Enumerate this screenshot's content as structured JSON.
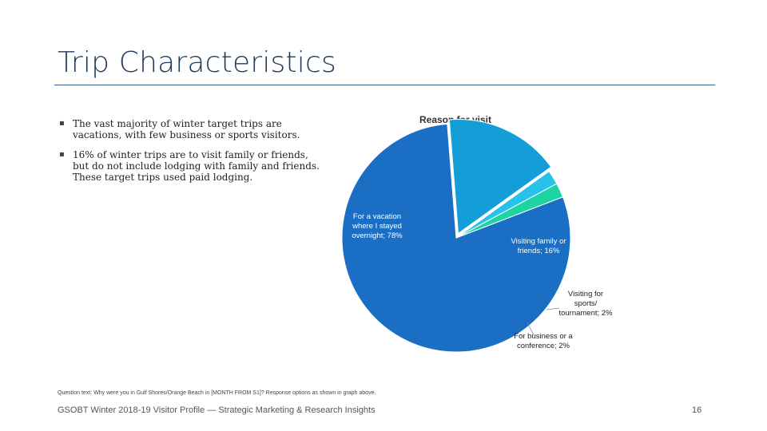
{
  "slide": {
    "title": "Trip Characteristics",
    "bullets": [
      "The vast majority of winter target trips are vacations, with few business or sports visitors.",
      "16% of winter trips are to visit family or friends, but do not include lodging with family and friends. These target trips used paid lodging."
    ],
    "bullet_marker": "▪",
    "footnote": "Question text: Why were you in Gulf Shores/Orange Beach in [MONTH FROM S1]? Response options as shown in graph above.",
    "footer_text": "GSOBT Winter 2018-19 Visitor Profile — Strategic Marketing & Research Insights",
    "page_number": "16"
  },
  "chart_data": {
    "type": "pie",
    "title": "Reason for visit",
    "slices": [
      {
        "name": "For a vacation where I stayed overnight",
        "value": 78,
        "label_lines": [
          "For a vacation",
          "where I stayed",
          "overnight; 78%"
        ],
        "color": "#1a6fc4",
        "label_color": "#ffffff"
      },
      {
        "name": "Visiting family or friends",
        "value": 16,
        "label_lines": [
          "Visiting family or",
          "friends; 16%"
        ],
        "color": "#139ed8",
        "label_color": "#ffffff"
      },
      {
        "name": "Visiting for sports/ tournament",
        "value": 2,
        "label_lines": [
          "Visiting for",
          "sports/",
          "tournament; 2%"
        ],
        "color": "#26c2ea",
        "label_color": "#222222"
      },
      {
        "name": "For business or a conference",
        "value": 2,
        "label_lines": [
          "For business or a",
          "conference; 2%"
        ],
        "color": "#1fd4a4",
        "label_color": "#222222"
      }
    ]
  }
}
